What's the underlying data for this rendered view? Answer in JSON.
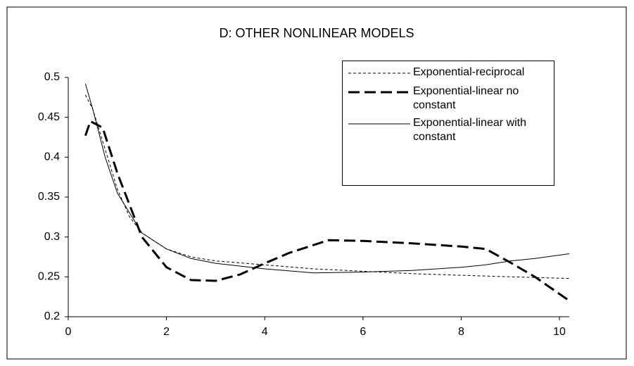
{
  "chart_data": {
    "type": "line",
    "title": "D: OTHER NONLINEAR MODELS",
    "xlim": [
      0,
      10.2
    ],
    "xticks": [
      0,
      2,
      4,
      6,
      8,
      10
    ],
    "ylim": [
      0.2,
      0.5
    ],
    "yticks": [
      0.2,
      0.25,
      0.3,
      0.35,
      0.4,
      0.45,
      0.5
    ],
    "legend": "top-right",
    "series": [
      {
        "name": "Exponential-reciprocal",
        "color": "#000000",
        "style": "dashed",
        "x": [
          0.35,
          0.5,
          0.75,
          1,
          1.25,
          1.5,
          2,
          2.5,
          3,
          4,
          5,
          6,
          7,
          8,
          9,
          10.2
        ],
        "values": [
          0.478,
          0.46,
          0.41,
          0.36,
          0.325,
          0.305,
          0.285,
          0.275,
          0.27,
          0.265,
          0.26,
          0.257,
          0.254,
          0.252,
          0.25,
          0.248
        ]
      },
      {
        "name": "Exponential-linear no constant",
        "color": "#000000",
        "style": "bold-dashed",
        "x": [
          0.35,
          0.45,
          0.7,
          1,
          1.5,
          2,
          2.5,
          3,
          3.5,
          4,
          4.5,
          5,
          5.3,
          6,
          7,
          8,
          8.5,
          9,
          9.5,
          10.2
        ],
        "values": [
          0.427,
          0.445,
          0.437,
          0.38,
          0.3,
          0.262,
          0.246,
          0.245,
          0.253,
          0.267,
          0.28,
          0.29,
          0.296,
          0.295,
          0.292,
          0.288,
          0.285,
          0.268,
          0.25,
          0.22
        ]
      },
      {
        "name": "Exponential-linear with constant",
        "color": "#000000",
        "style": "solid",
        "x": [
          0.35,
          0.5,
          0.75,
          1,
          1.5,
          2,
          2.5,
          3,
          4,
          5,
          6,
          7,
          8,
          8.5,
          9,
          9.5,
          10.2
        ],
        "values": [
          0.492,
          0.46,
          0.4,
          0.355,
          0.305,
          0.285,
          0.273,
          0.267,
          0.26,
          0.255,
          0.256,
          0.258,
          0.262,
          0.265,
          0.27,
          0.273,
          0.279
        ]
      }
    ]
  }
}
